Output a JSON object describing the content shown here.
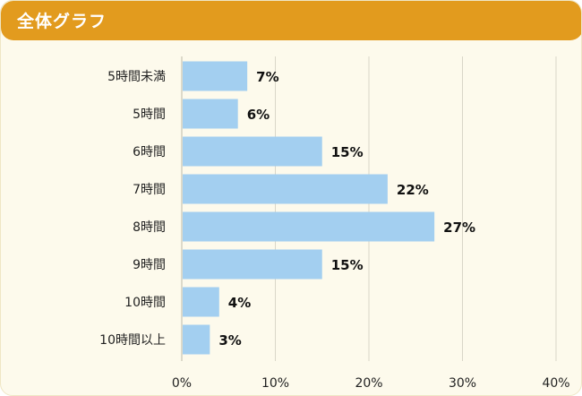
{
  "header": {
    "title": "全体グラフ"
  },
  "colors": {
    "header_bg": "#e29b1e",
    "panel_bg": "#fdfaec",
    "bar": "#a3cff0",
    "grid": "#d9d6c8"
  },
  "chart_data": {
    "type": "bar",
    "orientation": "horizontal",
    "title": "全体グラフ",
    "categories": [
      "5時間未満",
      "5時間",
      "6時間",
      "7時間",
      "8時間",
      "9時間",
      "10時間",
      "10時間以上"
    ],
    "values": [
      7,
      6,
      15,
      22,
      27,
      15,
      4,
      3
    ],
    "value_labels": [
      "7%",
      "6%",
      "15%",
      "22%",
      "27%",
      "15%",
      "4%",
      "3%"
    ],
    "xlim": [
      0,
      40
    ],
    "x_ticks": [
      0,
      10,
      20,
      30,
      40
    ],
    "x_tick_labels": [
      "0%",
      "10%",
      "20%",
      "30%",
      "40%"
    ],
    "grid": true,
    "legend": "none",
    "xlabel": "",
    "ylabel": ""
  }
}
